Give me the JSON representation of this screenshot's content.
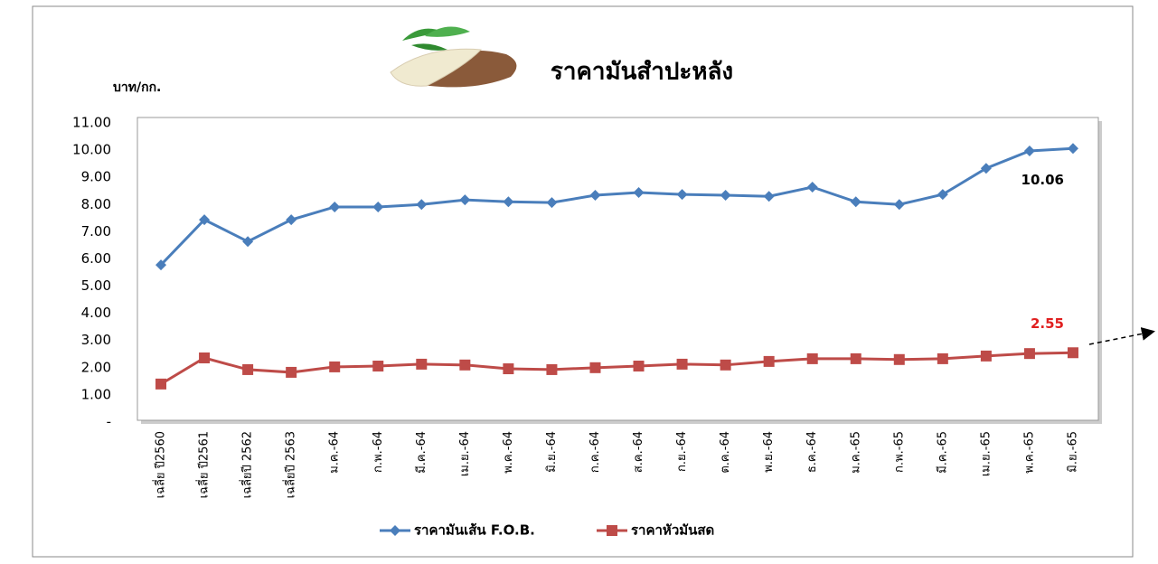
{
  "chart_data": {
    "type": "line",
    "title": "ราคามันสำปะหลัง",
    "y_label": "บาท/กก.",
    "categories": [
      "เฉลี่ย ปี2560",
      "เฉลี่ย ปี2561",
      "เฉลี่ยปี 2562",
      "เฉลี่ยปี 2563",
      "ม.ค.-64",
      "ก.พ.-64",
      "มี.ค.-64",
      "เม.ย.-64",
      "พ.ค.-64",
      "มิ.ย.-64",
      "ก.ค.-64",
      "ส.ค.-64",
      "ก.ย.-64",
      "ต.ค.-64",
      "พ.ย.-64",
      "ธ.ค.-64",
      "ม.ค.-65",
      "ก.พ.-65",
      "มี.ค.-65",
      "เม.ย.-65",
      "พ.ค.-65",
      "มิ.ย.-65"
    ],
    "series": [
      {
        "name": "ราคามันเส้น F.O.B.",
        "color": "#4a7ebb",
        "marker": "diamond",
        "values": [
          5.78,
          7.44,
          6.64,
          7.44,
          7.91,
          7.91,
          8.0,
          8.17,
          8.1,
          8.07,
          8.34,
          8.44,
          8.37,
          8.34,
          8.3,
          8.64,
          8.1,
          8.0,
          8.37,
          9.33,
          9.97,
          10.06
        ]
      },
      {
        "name": "ราคาหัวมันสด",
        "color": "#be4b48",
        "marker": "square",
        "values": [
          1.4,
          2.36,
          1.93,
          1.83,
          2.03,
          2.06,
          2.13,
          2.1,
          1.96,
          1.93,
          2.0,
          2.06,
          2.13,
          2.1,
          2.23,
          2.33,
          2.33,
          2.3,
          2.33,
          2.43,
          2.52,
          2.55
        ]
      }
    ],
    "ylim": [
      0,
      11
    ],
    "yticks": [
      {
        "value": 0,
        "label": "-"
      },
      {
        "value": 1,
        "label": "1.00"
      },
      {
        "value": 2,
        "label": "2.00"
      },
      {
        "value": 3,
        "label": "3.00"
      },
      {
        "value": 4,
        "label": "4.00"
      },
      {
        "value": 5,
        "label": "5.00"
      },
      {
        "value": 6,
        "label": "6.00"
      },
      {
        "value": 7,
        "label": "7.00"
      },
      {
        "value": 8,
        "label": "8.00"
      },
      {
        "value": 9,
        "label": "9.00"
      },
      {
        "value": 10,
        "label": "10.00"
      },
      {
        "value": 11,
        "label": "11.00"
      }
    ],
    "grid": false,
    "legend": "bottom"
  }
}
